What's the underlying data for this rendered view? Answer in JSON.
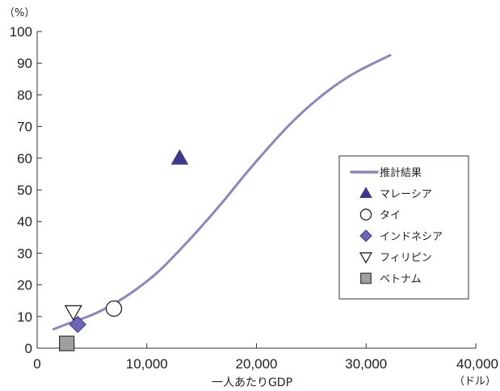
{
  "chart_data": {
    "type": "scatter",
    "title": "",
    "xlabel": "一人あたりGDP",
    "x_unit": "（ドル）",
    "ylabel": "",
    "y_unit": "（%）",
    "xlim": [
      0,
      40000
    ],
    "ylim": [
      0,
      100
    ],
    "x_ticks": [
      0,
      10000,
      20000,
      30000,
      40000
    ],
    "x_tick_labels": [
      "0",
      "10,000",
      "20,000",
      "30,000",
      "40,000"
    ],
    "y_ticks": [
      0,
      10,
      20,
      30,
      40,
      50,
      60,
      70,
      80,
      90,
      100
    ],
    "y_tick_labels": [
      "0",
      "10",
      "20",
      "30",
      "40",
      "50",
      "60",
      "70",
      "80",
      "90",
      "100"
    ],
    "grid": false,
    "legend_position": "right",
    "curve": {
      "name": "推計結果",
      "color": "#8a86c0",
      "x": [
        1500,
        3000,
        5000,
        7000,
        9000,
        11000,
        13000,
        15000,
        17000,
        19000,
        21000,
        23000,
        25000,
        27000,
        29000,
        31000,
        32200
      ],
      "y": [
        6,
        8,
        10.5,
        14,
        18.5,
        24,
        31,
        38.5,
        46.5,
        55,
        63,
        70.5,
        77,
        82.5,
        87,
        90.5,
        92.5
      ]
    },
    "series": [
      {
        "name": "マレーシア",
        "marker": "triangle-up",
        "color": "#3d3a8c",
        "x": 13000,
        "y": 60
      },
      {
        "name": "タイ",
        "marker": "circle-open",
        "color": "#ffffff",
        "x": 7000,
        "y": 12.5
      },
      {
        "name": "インドネシア",
        "marker": "diamond",
        "color": "#6e68b4",
        "x": 3700,
        "y": 7.5
      },
      {
        "name": "フィリピン",
        "marker": "triangle-down-open",
        "color": "#ffffff",
        "x": 3300,
        "y": 11.5
      },
      {
        "name": "ベトナム",
        "marker": "square",
        "color": "#a0a0a0",
        "x": 2700,
        "y": 1.5
      }
    ]
  }
}
